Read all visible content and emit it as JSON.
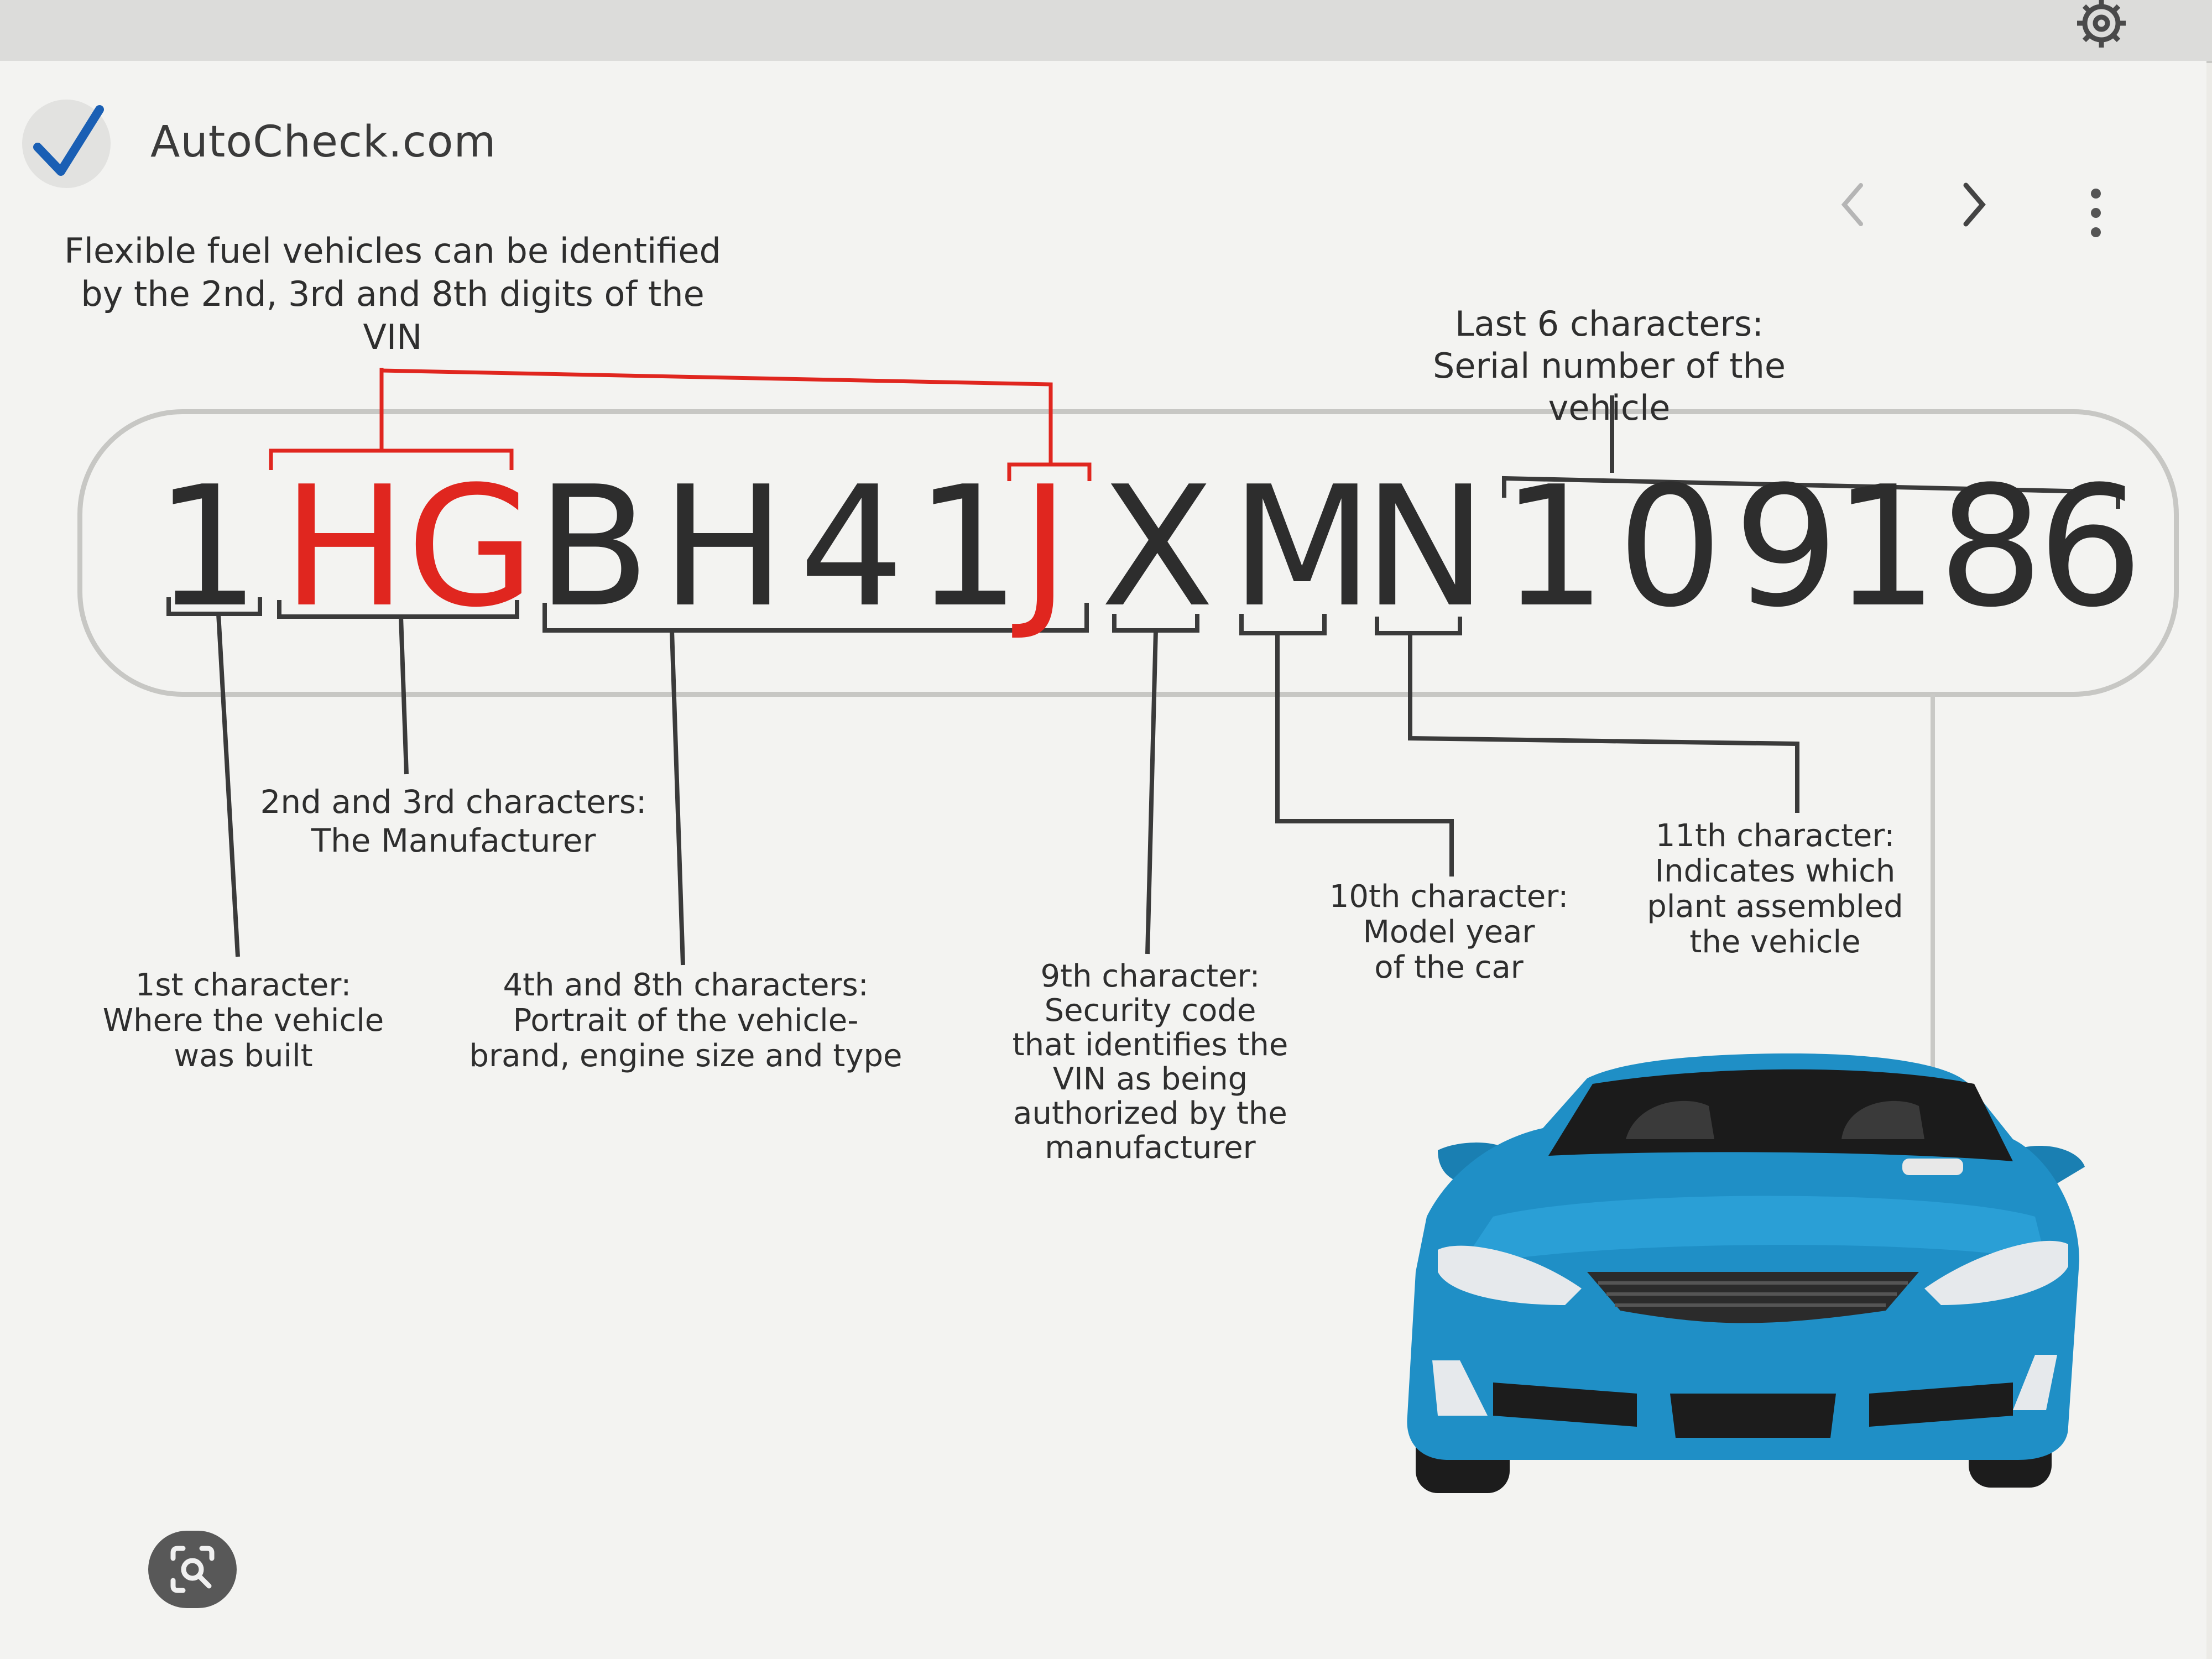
{
  "browser": {
    "site_name": "AutoCheck.com",
    "verified_icon": "check-icon",
    "settings_icon": "gear-icon",
    "back_icon": "chevron-left-icon",
    "forward_icon": "chevron-right-icon",
    "menu_icon": "more-vertical-icon",
    "lens_icon": "lens-icon"
  },
  "diagram": {
    "vin": [
      {
        "char": "1",
        "color": "#2d2d2d"
      },
      {
        "char": "H",
        "color": "#e0261f"
      },
      {
        "char": "G",
        "color": "#e0261f"
      },
      {
        "char": "B",
        "color": "#2d2d2d"
      },
      {
        "char": "H",
        "color": "#2d2d2d"
      },
      {
        "char": "4",
        "color": "#2d2d2d"
      },
      {
        "char": "1",
        "color": "#2d2d2d"
      },
      {
        "char": "J",
        "color": "#e0261f"
      },
      {
        "char": "X",
        "color": "#2d2d2d"
      },
      {
        "char": "M",
        "color": "#2d2d2d"
      },
      {
        "char": "N",
        "color": "#2d2d2d"
      },
      {
        "char": "1",
        "color": "#2d2d2d"
      },
      {
        "char": "0",
        "color": "#2d2d2d"
      },
      {
        "char": "9",
        "color": "#2d2d2d"
      },
      {
        "char": "1",
        "color": "#2d2d2d"
      },
      {
        "char": "8",
        "color": "#2d2d2d"
      },
      {
        "char": "6",
        "color": "#2d2d2d"
      }
    ],
    "labels": {
      "flex_fuel": "Flexible fuel vehicles can be identified\nby the 2nd, 3rd and 8th digits of the VIN",
      "last_six": "Last 6 characters:\nSerial number of the vehicle",
      "second_third": "2nd and 3rd characters:\nThe Manufacturer",
      "first": "1st character:\nWhere the vehicle\nwas built",
      "fourth_eighth": "4th and 8th characters:\nPortrait of the vehicle-\nbrand, engine size and type",
      "ninth": "9th character:\nSecurity code\nthat identifies the\nVIN as being\nauthorized by the\nmanufacturer",
      "tenth": "10th character:\nModel year\nof the car",
      "eleventh": "11th character:\nIndicates which\nplant assembled\nthe vehicle"
    },
    "colors": {
      "highlight": "#e0261f",
      "text": "#2d2d2d",
      "car_body": "#1f8fc6"
    }
  }
}
